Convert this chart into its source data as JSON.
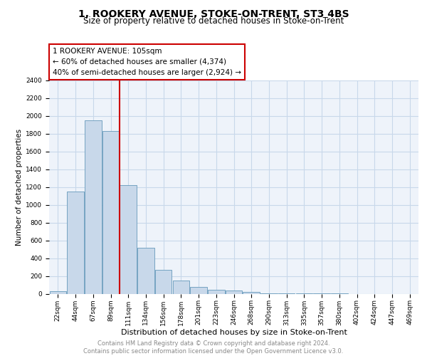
{
  "title": "1, ROOKERY AVENUE, STOKE-ON-TRENT, ST3 4BS",
  "subtitle": "Size of property relative to detached houses in Stoke-on-Trent",
  "xlabel": "Distribution of detached houses by size in Stoke-on-Trent",
  "ylabel": "Number of detached properties",
  "categories": [
    "22sqm",
    "44sqm",
    "67sqm",
    "89sqm",
    "111sqm",
    "134sqm",
    "156sqm",
    "178sqm",
    "201sqm",
    "223sqm",
    "246sqm",
    "268sqm",
    "290sqm",
    "313sqm",
    "335sqm",
    "357sqm",
    "380sqm",
    "402sqm",
    "424sqm",
    "447sqm",
    "469sqm"
  ],
  "values": [
    25,
    1150,
    1950,
    1830,
    1220,
    520,
    265,
    150,
    75,
    45,
    35,
    20,
    5,
    3,
    2,
    1,
    1,
    0,
    0,
    0,
    0
  ],
  "bar_color": "#c8d8ea",
  "bar_edge_color": "#6699bb",
  "vline_x": 3.5,
  "vline_color": "#cc0000",
  "annotation_text": "1 ROOKERY AVENUE: 105sqm\n← 60% of detached houses are smaller (4,374)\n40% of semi-detached houses are larger (2,924) →",
  "annotation_box_color": "#cc0000",
  "ylim": [
    0,
    2400
  ],
  "yticks": [
    0,
    200,
    400,
    600,
    800,
    1000,
    1200,
    1400,
    1600,
    1800,
    2000,
    2200,
    2400
  ],
  "grid_color": "#c8d8ea",
  "background_color": "#eef3fa",
  "footer_text": "Contains HM Land Registry data © Crown copyright and database right 2024.\nContains public sector information licensed under the Open Government Licence v3.0.",
  "title_fontsize": 10,
  "subtitle_fontsize": 8.5,
  "xlabel_fontsize": 8,
  "ylabel_fontsize": 7.5,
  "tick_fontsize": 6.5,
  "annotation_fontsize": 7.5,
  "footer_fontsize": 6
}
